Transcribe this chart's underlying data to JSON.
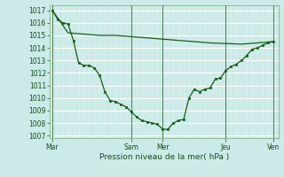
{
  "background_color": "#cceae7",
  "grid_color_major": "#ffffff",
  "grid_color_minor": "#e0f0ee",
  "line_color": "#1a5c1a",
  "marker_color": "#1a5c1a",
  "title": "Pression niveau de la mer( hPa )",
  "ylim": [
    1006.8,
    1017.4
  ],
  "yticks": [
    1007,
    1008,
    1009,
    1010,
    1011,
    1012,
    1013,
    1014,
    1015,
    1016,
    1017
  ],
  "xtick_labels": [
    "Mar",
    "Sam",
    "Mer",
    "Jeu",
    "Ven"
  ],
  "xtick_positions": [
    0,
    15,
    21,
    33,
    42
  ],
  "xlim": [
    -0.5,
    43
  ],
  "vline_positions": [
    0,
    15,
    21,
    33,
    42
  ],
  "series1_x": [
    0,
    3,
    6,
    9,
    12,
    15,
    18,
    21,
    24,
    27,
    30,
    33,
    36,
    39,
    42
  ],
  "series1_y": [
    1017.0,
    1015.2,
    1015.1,
    1015.0,
    1015.0,
    1014.9,
    1014.8,
    1014.7,
    1014.6,
    1014.5,
    1014.4,
    1014.35,
    1014.3,
    1014.4,
    1014.5
  ],
  "series2_x": [
    0,
    1,
    2,
    3,
    4,
    5,
    6,
    7,
    8,
    9,
    10,
    11,
    12,
    13,
    14,
    15,
    16,
    17,
    18,
    19,
    20,
    21,
    22,
    23,
    24,
    25,
    26,
    27,
    28,
    29,
    30,
    31,
    32,
    33,
    34,
    35,
    36,
    37,
    38,
    39,
    40,
    41,
    42
  ],
  "series2_y": [
    1017.0,
    1016.3,
    1016.0,
    1015.9,
    1014.6,
    1012.8,
    1012.6,
    1012.6,
    1012.4,
    1011.8,
    1010.5,
    1009.8,
    1009.7,
    1009.5,
    1009.3,
    1008.9,
    1008.5,
    1008.2,
    1008.1,
    1008.0,
    1007.9,
    1007.5,
    1007.5,
    1008.0,
    1008.2,
    1008.3,
    1010.0,
    1010.7,
    1010.5,
    1010.7,
    1010.8,
    1011.5,
    1011.6,
    1012.2,
    1012.5,
    1012.7,
    1013.0,
    1013.4,
    1013.9,
    1014.0,
    1014.2,
    1014.4,
    1014.5
  ],
  "title_fontsize": 6.5,
  "tick_fontsize": 5.5
}
